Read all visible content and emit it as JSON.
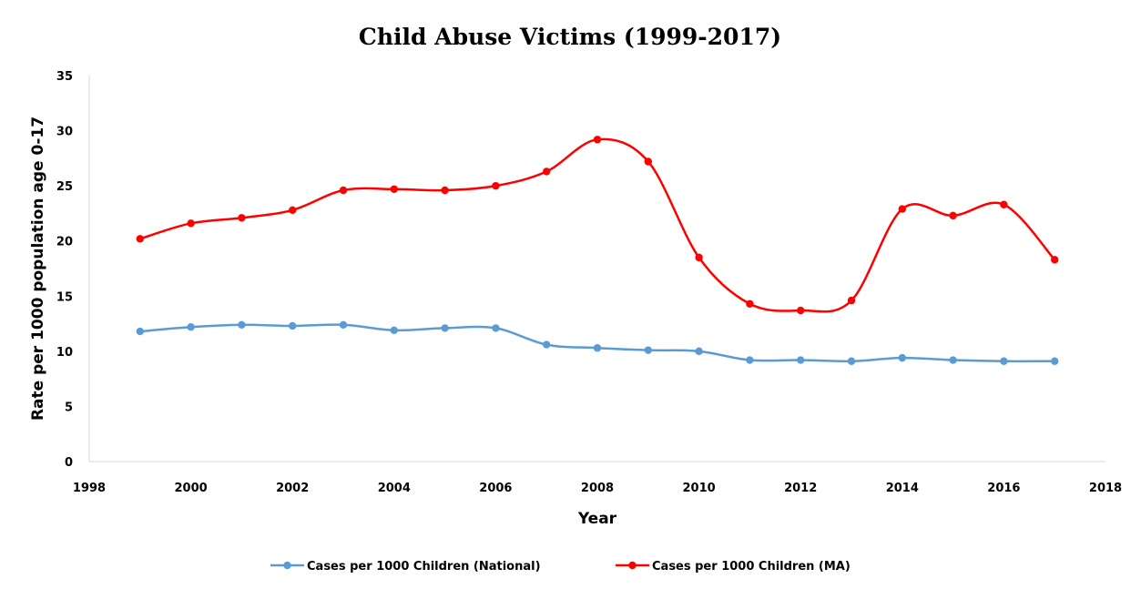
{
  "chart_data": {
    "type": "line",
    "title": "Child Abuse Victims (1999-2017)",
    "xlabel": "Year",
    "ylabel": "Rate per 1000 population age 0-17",
    "xlim": [
      1998,
      2018
    ],
    "ylim": [
      0,
      35
    ],
    "x_ticks": [
      "1998",
      "2000",
      "2002",
      "2004",
      "2006",
      "2008",
      "2010",
      "2012",
      "2014",
      "2016",
      "2018"
    ],
    "y_ticks": [
      "0",
      "5",
      "10",
      "15",
      "20",
      "25",
      "30",
      "35"
    ],
    "grid": false,
    "smooth": true,
    "legend_position": "bottom",
    "x": [
      1999,
      2000,
      2001,
      2002,
      2003,
      2004,
      2005,
      2006,
      2007,
      2008,
      2009,
      2010,
      2011,
      2012,
      2013,
      2014,
      2015,
      2016,
      2017
    ],
    "series": [
      {
        "name": "Cases per 1000 Children (National)",
        "color": "#5b9bd5",
        "values": [
          11.8,
          12.2,
          12.4,
          12.3,
          12.4,
          11.9,
          12.1,
          12.1,
          10.6,
          10.3,
          10.1,
          10.0,
          9.2,
          9.2,
          9.1,
          9.4,
          9.2,
          9.1,
          9.1
        ]
      },
      {
        "name": "Cases per 1000 Children (MA)",
        "color": "#ff0000",
        "values": [
          20.2,
          21.6,
          22.1,
          22.8,
          24.6,
          24.7,
          24.6,
          25.0,
          26.3,
          29.2,
          27.2,
          18.5,
          14.3,
          13.7,
          14.6,
          22.9,
          22.3,
          23.3,
          18.3
        ]
      }
    ]
  }
}
